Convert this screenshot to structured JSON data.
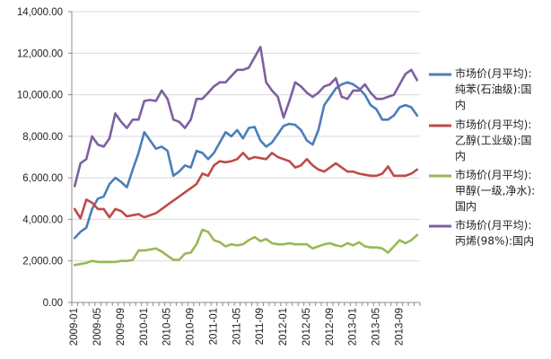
{
  "chart_data": {
    "type": "line",
    "title": "",
    "xlabel": "",
    "ylabel": "",
    "ylim": [
      0,
      14000
    ],
    "y_ticks": [
      "0.00",
      "2,000.00",
      "4,000.00",
      "6,000.00",
      "8,000.00",
      "10,000.00",
      "12,000.00",
      "14,000.00"
    ],
    "x_tick_labels": [
      "2009-01",
      "2009-05",
      "2009-09",
      "2010-01",
      "2010-05",
      "2010-09",
      "2011-01",
      "2011-05",
      "2011-09",
      "2012-01",
      "2012-05",
      "2012-09",
      "2013-01",
      "2013-05",
      "2013-09"
    ],
    "grid": "horizontal",
    "legend_position": "right",
    "x": [
      "2009-01",
      "2009-02",
      "2009-03",
      "2009-04",
      "2009-05",
      "2009-06",
      "2009-07",
      "2009-08",
      "2009-09",
      "2009-10",
      "2009-11",
      "2009-12",
      "2010-01",
      "2010-02",
      "2010-03",
      "2010-04",
      "2010-05",
      "2010-06",
      "2010-07",
      "2010-08",
      "2010-09",
      "2010-10",
      "2010-11",
      "2010-12",
      "2011-01",
      "2011-02",
      "2011-03",
      "2011-04",
      "2011-05",
      "2011-06",
      "2011-07",
      "2011-08",
      "2011-09",
      "2011-10",
      "2011-11",
      "2011-12",
      "2012-01",
      "2012-02",
      "2012-03",
      "2012-04",
      "2012-05",
      "2012-06",
      "2012-07",
      "2012-08",
      "2012-09",
      "2012-10",
      "2012-11",
      "2012-12",
      "2013-01",
      "2013-02",
      "2013-03",
      "2013-04",
      "2013-05",
      "2013-06",
      "2013-07",
      "2013-08",
      "2013-09",
      "2013-10",
      "2013-11",
      "2013-12"
    ],
    "series": [
      {
        "name": "市场价(月平均):纯苯(石油级):国内",
        "color": "#4a7ebb",
        "values": [
          3100,
          3400,
          3600,
          4500,
          5000,
          5100,
          5700,
          6000,
          5800,
          5550,
          6400,
          7200,
          8200,
          7800,
          7400,
          7500,
          7300,
          6100,
          6300,
          6600,
          6500,
          7300,
          7200,
          6900,
          7200,
          7700,
          8200,
          8000,
          8300,
          7900,
          8400,
          8450,
          7800,
          7500,
          7700,
          8100,
          8500,
          8600,
          8550,
          8300,
          7800,
          7600,
          8300,
          9500,
          9900,
          10300,
          10500,
          10600,
          10500,
          10300,
          10000,
          9500,
          9300,
          8800,
          8800,
          9000,
          9400,
          9500,
          9400,
          9000
        ]
      },
      {
        "name": "市场价(月平均):乙醇(工业级):国内",
        "color": "#be4b48",
        "values": [
          4500,
          4050,
          4950,
          4800,
          4500,
          4500,
          4100,
          4500,
          4400,
          4150,
          4200,
          4250,
          4100,
          4200,
          4300,
          4500,
          4700,
          4900,
          5100,
          5300,
          5500,
          5700,
          6200,
          6100,
          6600,
          6800,
          6750,
          6800,
          6900,
          7200,
          6900,
          7000,
          6950,
          6900,
          7200,
          7000,
          6900,
          6800,
          6500,
          6600,
          6900,
          6600,
          6400,
          6300,
          6500,
          6700,
          6500,
          6300,
          6300,
          6200,
          6150,
          6100,
          6100,
          6200,
          6550,
          6100,
          6100,
          6100,
          6200,
          6400
        ]
      },
      {
        "name": "市场价(月平均):甲醇(一级,净水):国内",
        "color": "#98b954",
        "values": [
          1800,
          1850,
          1900,
          2000,
          1950,
          1950,
          1950,
          1950,
          2000,
          2000,
          2050,
          2500,
          2500,
          2550,
          2600,
          2450,
          2250,
          2050,
          2050,
          2350,
          2400,
          2800,
          3500,
          3400,
          3000,
          2900,
          2700,
          2800,
          2750,
          2800,
          3000,
          3150,
          2950,
          3050,
          2850,
          2800,
          2800,
          2850,
          2800,
          2800,
          2800,
          2600,
          2700,
          2800,
          2850,
          2750,
          2700,
          2850,
          2750,
          2900,
          2700,
          2650,
          2650,
          2600,
          2400,
          2700,
          3000,
          2850,
          3000,
          3250
        ]
      },
      {
        "name": "市场价(月平均):丙烯(98%):国内",
        "color": "#7d60a0",
        "values": [
          5600,
          6700,
          6900,
          8000,
          7600,
          7500,
          7900,
          9100,
          8700,
          8400,
          8800,
          8800,
          9700,
          9750,
          9700,
          10200,
          9800,
          8800,
          8700,
          8400,
          8800,
          9800,
          9800,
          10100,
          10400,
          10600,
          10600,
          10900,
          11200,
          11200,
          11300,
          11800,
          12300,
          10600,
          10200,
          9900,
          8900,
          9700,
          10600,
          10400,
          10100,
          9900,
          10100,
          10400,
          10500,
          10800,
          9900,
          9800,
          10200,
          10200,
          10500,
          10100,
          9800,
          9800,
          9900,
          10000,
          10500,
          11000,
          11200,
          10700
        ]
      }
    ]
  },
  "legend": [
    {
      "lines": [
        "市场价(月平均):",
        "纯苯(石油级):国",
        "内"
      ]
    },
    {
      "lines": [
        "市场价(月平均):",
        "乙醇(工业级):国",
        "内"
      ]
    },
    {
      "lines": [
        "市场价(月平均):",
        "甲醇(一级,净水):",
        "国内"
      ]
    },
    {
      "lines": [
        "市场价(月平均):",
        "丙烯(98%):国内"
      ]
    }
  ]
}
